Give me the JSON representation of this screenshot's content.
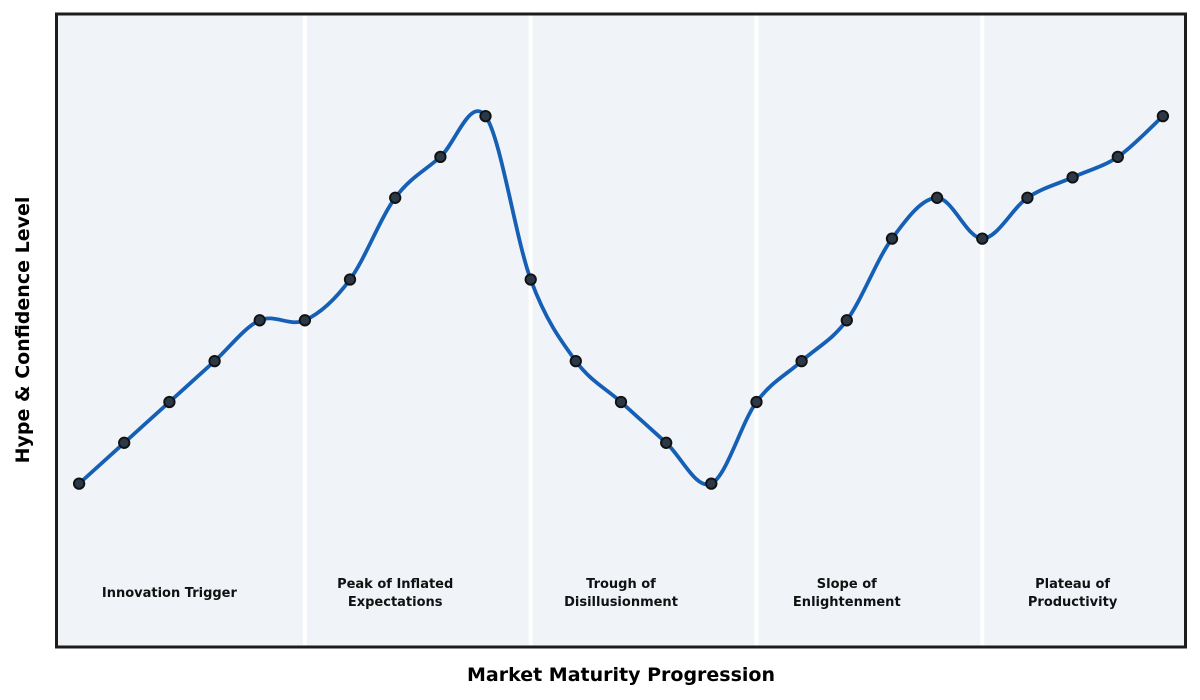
{
  "chart_data": {
    "type": "line",
    "title": "",
    "xlabel": "Market Maturity Progression",
    "ylabel": "Hype & Confidence Level",
    "x": [
      0,
      1,
      2,
      3,
      4,
      5,
      6,
      7,
      8,
      9,
      10,
      11,
      12,
      13,
      14,
      15,
      16,
      17,
      18,
      19,
      20,
      21,
      22,
      23,
      24
    ],
    "values": [
      10,
      15,
      20,
      25,
      30,
      30,
      35,
      45,
      50,
      55,
      35,
      25,
      20,
      15,
      10,
      20,
      25,
      30,
      40,
      45,
      40,
      45,
      47.5,
      50,
      55
    ],
    "xlim": [
      -0.5,
      24.5
    ],
    "ylim": [
      -10,
      67.5
    ],
    "grid": false,
    "legend": "none",
    "curve_style": "smooth-spline",
    "phase_divider_x": [
      5,
      10,
      15,
      20
    ],
    "phase_labels": [
      {
        "label": "Innovation Trigger",
        "x": 2
      },
      {
        "label": "Peak of Inflated\nExpectations",
        "x": 7
      },
      {
        "label": "Trough of\nDisillusionment",
        "x": 12
      },
      {
        "label": "Slope of\nEnlightenment",
        "x": 17
      },
      {
        "label": "Plateau of\nProductivity",
        "x": 22
      }
    ],
    "style": {
      "figure_background": "#ffffff",
      "plot_background": "#f0f4f8",
      "divider_color": "#ffffff",
      "spine_color": "#1c1c1c",
      "line_color": "#155fb5",
      "marker_fill": "#2b3947",
      "marker_edge": "#111111",
      "label_color": "#111111",
      "axis_label_color": "#000000"
    }
  }
}
